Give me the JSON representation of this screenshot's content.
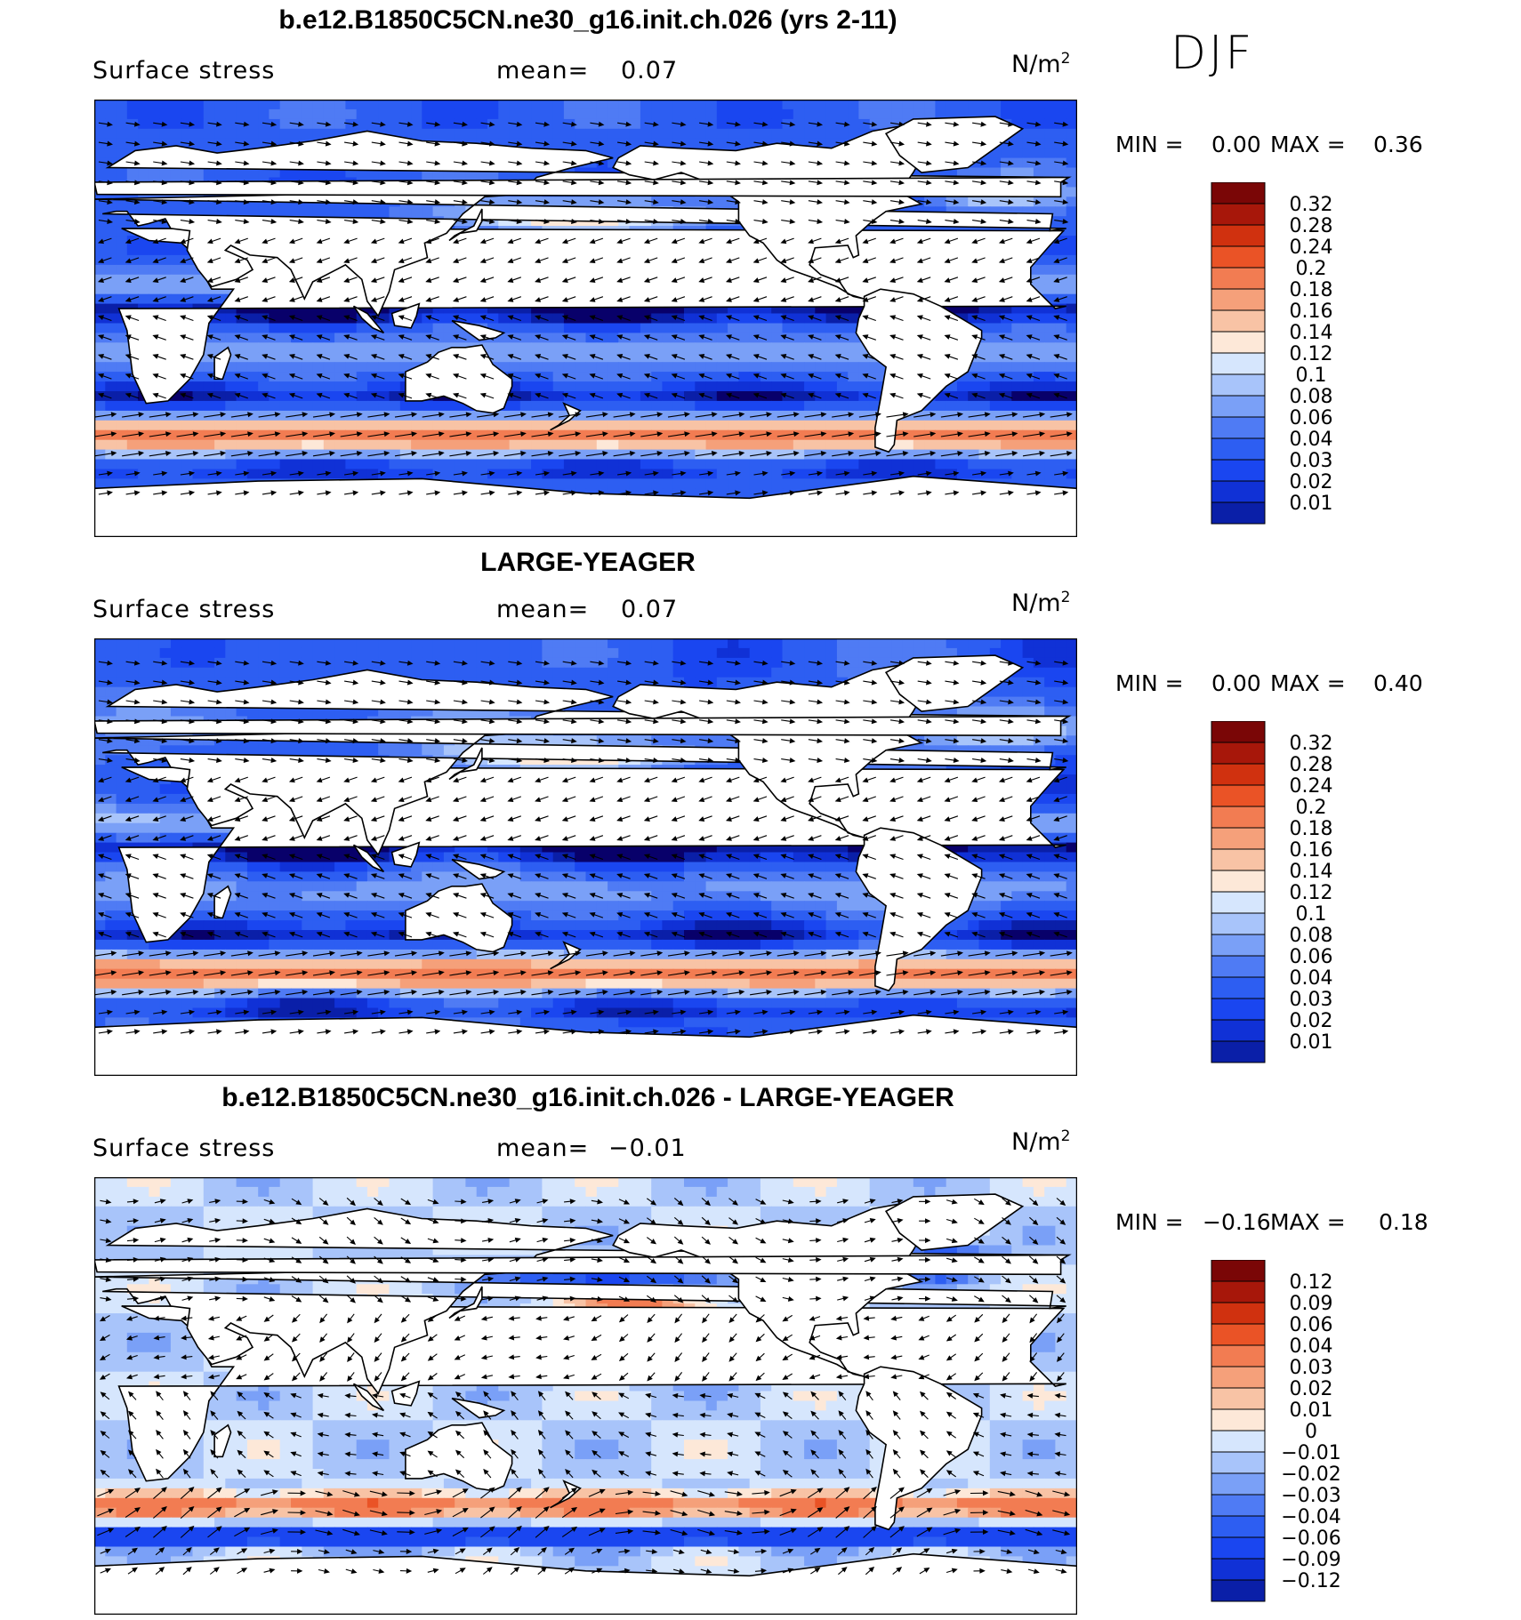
{
  "season": "DJF",
  "colors": {
    "abs_scale": [
      "#08006a",
      "#0a1fa8",
      "#1031d6",
      "#1a46f0",
      "#2d5ef2",
      "#4f7bf4",
      "#7aa0f7",
      "#a8c4fa",
      "#d6e6fd",
      "#fde8d8",
      "#f8c3a5",
      "#f5a07a",
      "#f27c52",
      "#ea5326",
      "#d0310f",
      "#a7170a",
      "#7a0606"
    ],
    "land": "#ffffff",
    "coast": "#000000"
  },
  "panels": [
    {
      "title": "b.e12.B1850C5CN.ne30_g16.init.ch.026 (yrs 2-11)",
      "variable": "Surface stress",
      "mean_label": "mean=",
      "mean_value": "0.07",
      "units": "N/m",
      "units_exp": "2",
      "min_label": "MIN =",
      "min_value": "0.00",
      "max_label": "MAX =",
      "max_value": "0.36",
      "colorbar_labels": [
        "0.32",
        "0.28",
        "0.24",
        "0.2",
        "0.18",
        "0.16",
        "0.14",
        "0.12",
        "0.1",
        "0.08",
        "0.06",
        "0.04",
        "0.03",
        "0.02",
        "0.01"
      ],
      "field": "model"
    },
    {
      "title": "LARGE-YEAGER",
      "variable": "Surface stress",
      "mean_label": "mean=",
      "mean_value": "0.07",
      "units": "N/m",
      "units_exp": "2",
      "min_label": "MIN =",
      "min_value": "0.00",
      "max_label": "MAX =",
      "max_value": "0.40",
      "colorbar_labels": [
        "0.32",
        "0.28",
        "0.24",
        "0.2",
        "0.18",
        "0.16",
        "0.14",
        "0.12",
        "0.1",
        "0.08",
        "0.06",
        "0.04",
        "0.03",
        "0.02",
        "0.01"
      ],
      "field": "obs"
    },
    {
      "title": "b.e12.B1850C5CN.ne30_g16.init.ch.026 - LARGE-YEAGER",
      "variable": "Surface stress",
      "mean_label": "mean=",
      "mean_value": "−0.01",
      "units": "N/m",
      "units_exp": "2",
      "min_label": "MIN =",
      "min_value": "−0.16",
      "max_label": "MAX =",
      "max_value": "0.18",
      "colorbar_labels": [
        "0.12",
        "0.09",
        "0.06",
        "0.04",
        "0.03",
        "0.02",
        "0.01",
        "0",
        "−0.01",
        "−0.02",
        "−0.03",
        "−0.04",
        "−0.06",
        "−0.09",
        "−0.12"
      ],
      "field": "diff"
    }
  ]
}
